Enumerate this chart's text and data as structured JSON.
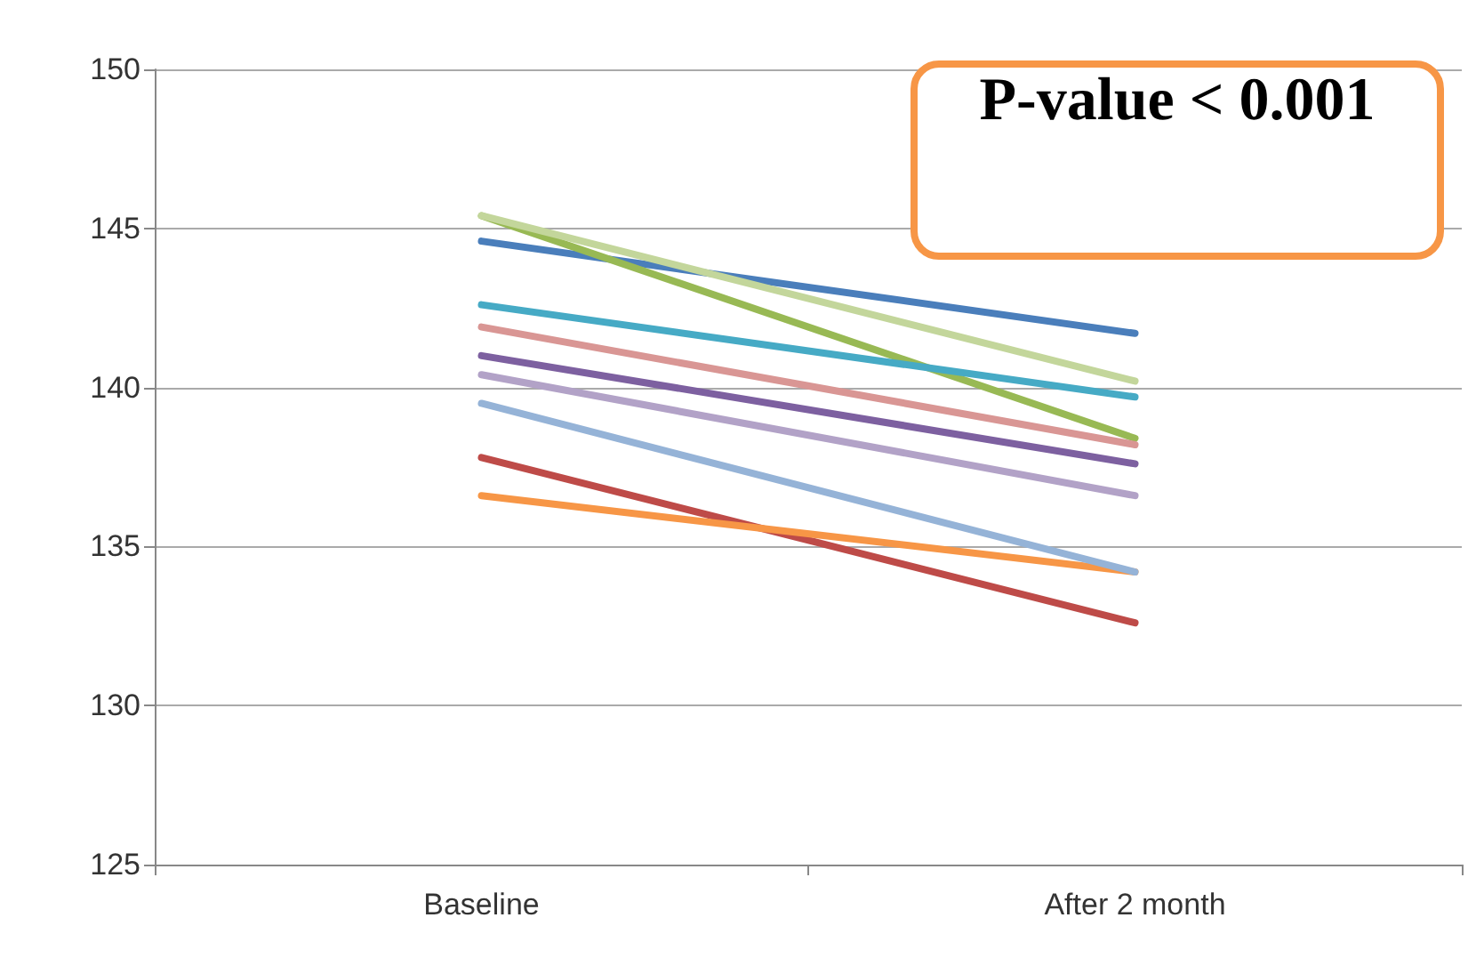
{
  "chart_data": {
    "type": "line",
    "categories": [
      "Baseline",
      "After 2 month"
    ],
    "series": [
      {
        "color": "#4a7ebb",
        "values": [
          144.6,
          141.7
        ]
      },
      {
        "color": "#be4b48",
        "values": [
          137.8,
          132.6
        ]
      },
      {
        "color": "#98b954",
        "values": [
          145.4,
          138.4
        ]
      },
      {
        "color": "#7d60a0",
        "values": [
          141.0,
          137.6
        ]
      },
      {
        "color": "#46aac5",
        "values": [
          142.6,
          139.7
        ]
      },
      {
        "color": "#f79646",
        "values": [
          136.6,
          134.2
        ]
      },
      {
        "color": "#95b3d7",
        "values": [
          139.5,
          134.2
        ]
      },
      {
        "color": "#d99694",
        "values": [
          141.9,
          138.2
        ]
      },
      {
        "color": "#b2a2c7",
        "values": [
          140.4,
          136.6
        ]
      },
      {
        "color": "#c3d69b",
        "values": [
          145.4,
          140.2
        ]
      }
    ],
    "ylim": [
      125,
      150
    ],
    "yticks": [
      125,
      130,
      135,
      140,
      145,
      150
    ],
    "grid": "y",
    "marker": "none",
    "line_style": "solid",
    "annotations": [
      "P-value < 0.001"
    ]
  }
}
